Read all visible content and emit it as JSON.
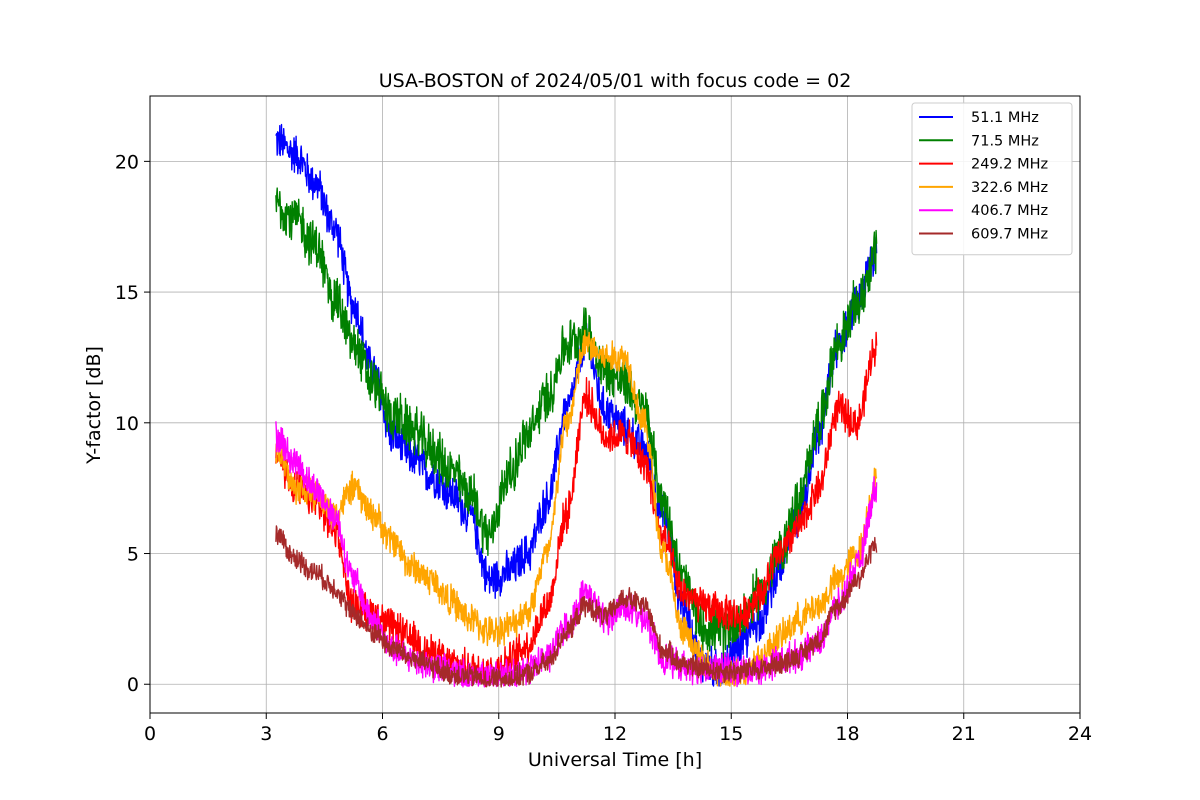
{
  "chart_data": {
    "type": "line",
    "title": "USA-BOSTON of 2024/05/01 with focus code = 02",
    "xlabel": "Universal Time [h]",
    "ylabel": "Y-factor [dB]",
    "xlim": [
      0,
      24
    ],
    "ylim": [
      -1.1,
      22.5
    ],
    "xticks": [
      0,
      3,
      6,
      9,
      12,
      15,
      18,
      21,
      24
    ],
    "yticks": [
      0,
      5,
      10,
      15,
      20
    ],
    "grid": true,
    "legend_position": "top-right",
    "x": [
      3.25,
      3.75,
      4.25,
      4.75,
      5.25,
      5.75,
      6.25,
      6.75,
      7.25,
      7.75,
      8.25,
      8.75,
      9.25,
      9.75,
      10.25,
      10.75,
      11.25,
      11.75,
      12.25,
      12.75,
      13.25,
      13.75,
      14.25,
      14.75,
      15.25,
      15.75,
      16.25,
      16.75,
      17.25,
      17.75,
      18.25,
      18.75
    ],
    "series": [
      {
        "name": " 51.1 MHz",
        "color": "#0000ff",
        "noise": 0.9,
        "values": [
          20.8,
          20.3,
          19.2,
          17.5,
          14.5,
          12.0,
          9.5,
          8.7,
          8.0,
          7.3,
          6.5,
          4.0,
          4.3,
          5.0,
          7.0,
          10.5,
          13.0,
          10.5,
          9.8,
          9.0,
          6.5,
          3.0,
          0.8,
          0.5,
          1.5,
          2.5,
          4.5,
          6.5,
          9.5,
          13.0,
          14.5,
          16.5
        ]
      },
      {
        "name": " 71.5 MHz",
        "color": "#008000",
        "noise": 1.1,
        "values": [
          18.4,
          17.8,
          16.8,
          14.8,
          13.0,
          11.5,
          10.3,
          9.8,
          9.0,
          8.2,
          7.3,
          5.7,
          8.0,
          9.5,
          11.0,
          13.0,
          13.5,
          12.0,
          11.5,
          10.5,
          7.0,
          4.0,
          2.2,
          2.0,
          2.5,
          3.5,
          5.0,
          7.0,
          10.0,
          13.0,
          14.5,
          16.5
        ]
      },
      {
        "name": "249.2 MHz",
        "color": "#ff0000",
        "noise": 0.8,
        "values": [
          8.8,
          7.5,
          7.0,
          6.0,
          3.0,
          2.7,
          2.2,
          1.7,
          1.2,
          0.8,
          0.6,
          0.5,
          0.9,
          1.5,
          3.0,
          6.5,
          11.0,
          9.5,
          9.5,
          8.5,
          5.5,
          3.5,
          3.0,
          2.8,
          2.6,
          3.5,
          5.0,
          6.0,
          7.5,
          10.5,
          10.0,
          13.0
        ]
      },
      {
        "name": "322.6 MHz",
        "color": "#ffa500",
        "noise": 0.7,
        "values": [
          9.0,
          7.5,
          7.3,
          6.5,
          7.5,
          6.5,
          5.5,
          4.5,
          4.0,
          3.2,
          2.5,
          2.0,
          2.2,
          2.8,
          5.0,
          10.0,
          13.0,
          12.5,
          12.5,
          10.0,
          5.0,
          2.0,
          1.0,
          0.3,
          0.4,
          1.0,
          1.8,
          2.5,
          3.0,
          4.0,
          5.0,
          7.8
        ]
      },
      {
        "name": "406.7 MHz",
        "color": "#ff00ff",
        "noise": 0.7,
        "values": [
          9.5,
          8.5,
          7.5,
          6.5,
          4.0,
          2.5,
          1.3,
          1.0,
          0.7,
          0.5,
          0.3,
          0.2,
          0.3,
          0.6,
          1.0,
          2.2,
          3.5,
          2.5,
          3.0,
          2.5,
          1.0,
          0.7,
          0.6,
          0.6,
          0.5,
          0.6,
          0.9,
          1.1,
          1.6,
          3.0,
          4.5,
          7.5
        ]
      },
      {
        "name": "609.7 MHz",
        "color": "#a52a2a",
        "noise": 0.5,
        "values": [
          5.8,
          4.8,
          4.3,
          3.7,
          2.7,
          2.0,
          1.4,
          1.0,
          0.7,
          0.4,
          0.3,
          0.2,
          0.2,
          0.4,
          0.8,
          2.0,
          3.0,
          2.6,
          3.3,
          3.0,
          1.3,
          0.8,
          0.6,
          0.5,
          0.5,
          0.6,
          0.8,
          1.1,
          1.7,
          3.0,
          4.0,
          5.4
        ]
      }
    ]
  }
}
